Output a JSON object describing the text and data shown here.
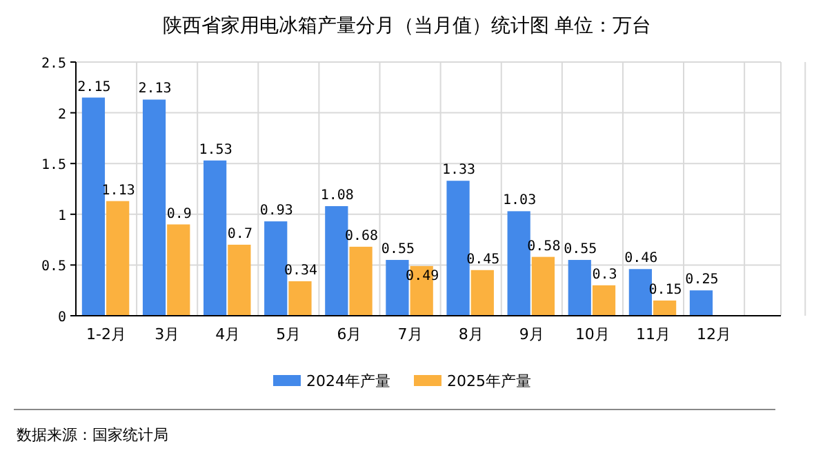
{
  "chart_data": {
    "type": "bar",
    "title": "陕西省家用电冰箱产量分月（当月值）统计图 单位：万台",
    "categories": [
      "1-2月",
      "3月",
      "4月",
      "5月",
      "6月",
      "7月",
      "8月",
      "9月",
      "10月",
      "11月",
      "12月"
    ],
    "series": [
      {
        "name": "2024年产量",
        "color": "#4389ea",
        "values": [
          2.15,
          2.13,
          1.53,
          0.93,
          1.08,
          0.55,
          1.33,
          1.03,
          0.55,
          0.46,
          0.25
        ]
      },
      {
        "name": "2025年产量",
        "color": "#fbb13f",
        "values": [
          1.13,
          0.9,
          0.7,
          0.34,
          0.68,
          0.49,
          0.45,
          0.58,
          0.3,
          0.15,
          null
        ]
      }
    ],
    "ylim": [
      0,
      2.5
    ],
    "yticks": [
      0,
      0.5,
      1,
      1.5,
      2,
      2.5
    ],
    "grid": true,
    "legend": "bottom",
    "data_labels": true,
    "annotations": [
      "数据来源：国家统计局"
    ]
  }
}
